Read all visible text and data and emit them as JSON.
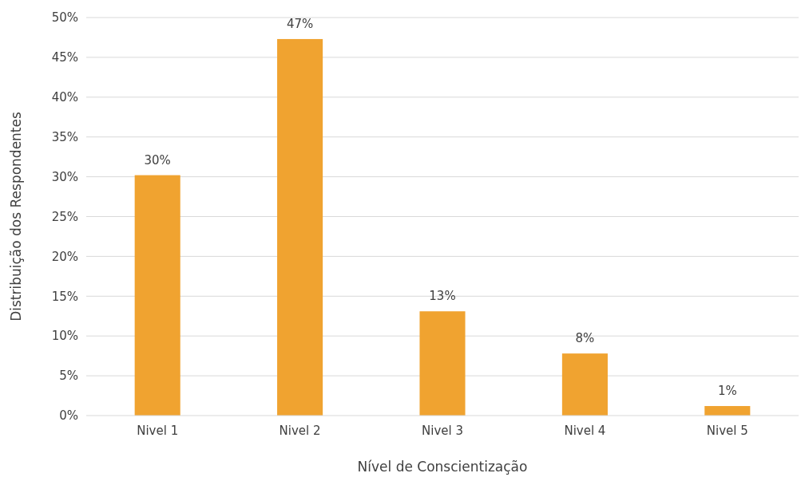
{
  "chart_data": {
    "type": "bar",
    "xlabel": "Nível de Conscientização",
    "ylabel": "Distribuição dos Respondentes",
    "categories": [
      "Nivel 1",
      "Nivel 2",
      "Nivel 3",
      "Nivel 4",
      "Nivel 5"
    ],
    "values": [
      30.2,
      47.3,
      13.1,
      7.8,
      1.2
    ],
    "value_labels": [
      "30%",
      "47%",
      "13%",
      "8%",
      "1%"
    ],
    "color": "#f0a330",
    "ylim": [
      0,
      50
    ],
    "yticks": [
      {
        "value": 0,
        "label": "0%"
      },
      {
        "value": 5,
        "label": "5%"
      },
      {
        "value": 10,
        "label": "10%"
      },
      {
        "value": 15,
        "label": "15%"
      },
      {
        "value": 20,
        "label": "20%"
      },
      {
        "value": 25,
        "label": "25%"
      },
      {
        "value": 30,
        "label": "30%"
      },
      {
        "value": 35,
        "label": "35%"
      },
      {
        "value": 40,
        "label": "40%"
      },
      {
        "value": 45,
        "label": "45%"
      },
      {
        "value": 50,
        "label": "50%"
      }
    ],
    "grid": "y"
  }
}
